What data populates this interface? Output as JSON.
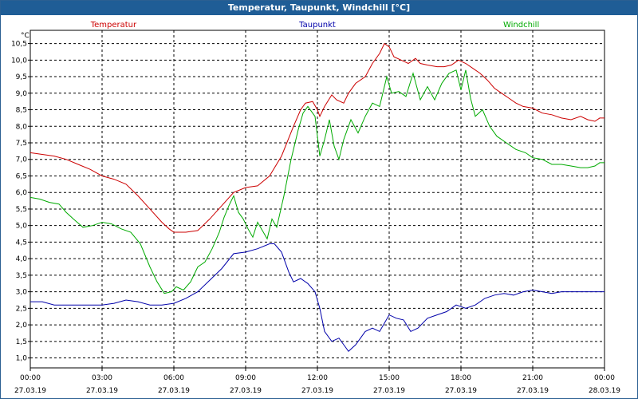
{
  "window": {
    "title": "Temperatur, Taupunkt, Windchill [°C]"
  },
  "chart_data": {
    "type": "line",
    "title": "Temperatur, Taupunkt, Windchill [°C]",
    "ylabel": "°C",
    "xlabel": "",
    "ylim": [
      0.7,
      10.9
    ],
    "xlim": [
      0,
      24
    ],
    "grid": true,
    "legend_position": "top",
    "x_ticks": [
      {
        "x": 0,
        "time": "00:00",
        "date": "27.03.19"
      },
      {
        "x": 3,
        "time": "03:00",
        "date": "27.03.19"
      },
      {
        "x": 6,
        "time": "06:00",
        "date": "27.03.19"
      },
      {
        "x": 9,
        "time": "09:00",
        "date": "27.03.19"
      },
      {
        "x": 12,
        "time": "12:00",
        "date": "27.03.19"
      },
      {
        "x": 15,
        "time": "15:00",
        "date": "27.03.19"
      },
      {
        "x": 18,
        "time": "18:00",
        "date": "27.03.19"
      },
      {
        "x": 21,
        "time": "21:00",
        "date": "27.03.19"
      },
      {
        "x": 24,
        "time": "00:00",
        "date": "28.03.19"
      }
    ],
    "y_ticks": [
      {
        "v": 1.0,
        "label": "1,0"
      },
      {
        "v": 1.5,
        "label": "1,5"
      },
      {
        "v": 2.0,
        "label": "2,0"
      },
      {
        "v": 2.5,
        "label": "2,5"
      },
      {
        "v": 3.0,
        "label": "3,0"
      },
      {
        "v": 3.5,
        "label": "3,5"
      },
      {
        "v": 4.0,
        "label": "4,0"
      },
      {
        "v": 4.5,
        "label": "4,5"
      },
      {
        "v": 5.0,
        "label": "5,0"
      },
      {
        "v": 5.5,
        "label": "5,5"
      },
      {
        "v": 6.0,
        "label": "6,0"
      },
      {
        "v": 6.5,
        "label": "6,5"
      },
      {
        "v": 7.0,
        "label": "7,0"
      },
      {
        "v": 7.5,
        "label": "7,5"
      },
      {
        "v": 8.0,
        "label": "8,0"
      },
      {
        "v": 8.5,
        "label": "8,5"
      },
      {
        "v": 9.0,
        "label": "9,0"
      },
      {
        "v": 9.5,
        "label": "9,5"
      },
      {
        "v": 10.0,
        "label": "10,0"
      },
      {
        "v": 10.5,
        "label": "10,5"
      }
    ],
    "series": [
      {
        "name": "Temperatur",
        "color": "#cc0000",
        "points": [
          [
            0,
            7.2
          ],
          [
            0.5,
            7.15
          ],
          [
            1,
            7.1
          ],
          [
            1.5,
            7.0
          ],
          [
            2,
            6.85
          ],
          [
            2.5,
            6.7
          ],
          [
            3,
            6.5
          ],
          [
            3.5,
            6.4
          ],
          [
            4,
            6.25
          ],
          [
            4.5,
            5.9
          ],
          [
            5,
            5.5
          ],
          [
            5.5,
            5.1
          ],
          [
            5.8,
            4.9
          ],
          [
            6,
            4.8
          ],
          [
            6.5,
            4.8
          ],
          [
            7,
            4.85
          ],
          [
            7.5,
            5.2
          ],
          [
            8,
            5.6
          ],
          [
            8.5,
            6.0
          ],
          [
            9,
            6.15
          ],
          [
            9.5,
            6.2
          ],
          [
            10,
            6.5
          ],
          [
            10.5,
            7.1
          ],
          [
            11,
            8.0
          ],
          [
            11.3,
            8.5
          ],
          [
            11.5,
            8.7
          ],
          [
            11.8,
            8.75
          ],
          [
            12,
            8.5
          ],
          [
            12.1,
            8.3
          ],
          [
            12.3,
            8.6
          ],
          [
            12.6,
            8.95
          ],
          [
            12.8,
            8.8
          ],
          [
            13.1,
            8.7
          ],
          [
            13.3,
            9.0
          ],
          [
            13.6,
            9.3
          ],
          [
            14,
            9.5
          ],
          [
            14.3,
            9.9
          ],
          [
            14.6,
            10.2
          ],
          [
            14.8,
            10.5
          ],
          [
            15,
            10.4
          ],
          [
            15.2,
            10.1
          ],
          [
            15.5,
            10.0
          ],
          [
            15.8,
            9.9
          ],
          [
            16.1,
            10.05
          ],
          [
            16.3,
            9.9
          ],
          [
            16.6,
            9.85
          ],
          [
            17,
            9.8
          ],
          [
            17.3,
            9.8
          ],
          [
            17.6,
            9.85
          ],
          [
            17.9,
            10.0
          ],
          [
            18.2,
            9.9
          ],
          [
            18.5,
            9.75
          ],
          [
            18.8,
            9.6
          ],
          [
            19.1,
            9.4
          ],
          [
            19.4,
            9.15
          ],
          [
            19.7,
            9.0
          ],
          [
            20,
            8.85
          ],
          [
            20.3,
            8.7
          ],
          [
            20.6,
            8.6
          ],
          [
            21,
            8.55
          ],
          [
            21.4,
            8.4
          ],
          [
            21.8,
            8.35
          ],
          [
            22.2,
            8.25
          ],
          [
            22.6,
            8.2
          ],
          [
            23,
            8.3
          ],
          [
            23.3,
            8.2
          ],
          [
            23.6,
            8.15
          ],
          [
            23.8,
            8.25
          ],
          [
            24,
            8.25
          ]
        ]
      },
      {
        "name": "Taupunkt",
        "color": "#0000aa",
        "points": [
          [
            0,
            2.7
          ],
          [
            0.5,
            2.7
          ],
          [
            1,
            2.6
          ],
          [
            1.5,
            2.6
          ],
          [
            2,
            2.6
          ],
          [
            2.5,
            2.6
          ],
          [
            3,
            2.6
          ],
          [
            3.5,
            2.65
          ],
          [
            4,
            2.75
          ],
          [
            4.5,
            2.7
          ],
          [
            5,
            2.6
          ],
          [
            5.5,
            2.6
          ],
          [
            6,
            2.65
          ],
          [
            6.5,
            2.8
          ],
          [
            7,
            3.0
          ],
          [
            7.5,
            3.35
          ],
          [
            8,
            3.7
          ],
          [
            8.5,
            4.15
          ],
          [
            9,
            4.2
          ],
          [
            9.5,
            4.3
          ],
          [
            10,
            4.45
          ],
          [
            10.2,
            4.45
          ],
          [
            10.5,
            4.2
          ],
          [
            10.8,
            3.6
          ],
          [
            11,
            3.3
          ],
          [
            11.3,
            3.4
          ],
          [
            11.6,
            3.25
          ],
          [
            11.9,
            3.0
          ],
          [
            12.1,
            2.5
          ],
          [
            12.3,
            1.8
          ],
          [
            12.6,
            1.5
          ],
          [
            12.9,
            1.6
          ],
          [
            13.1,
            1.4
          ],
          [
            13.3,
            1.2
          ],
          [
            13.6,
            1.4
          ],
          [
            14,
            1.8
          ],
          [
            14.3,
            1.9
          ],
          [
            14.6,
            1.8
          ],
          [
            15,
            2.3
          ],
          [
            15.3,
            2.2
          ],
          [
            15.6,
            2.15
          ],
          [
            15.9,
            1.8
          ],
          [
            16.2,
            1.9
          ],
          [
            16.6,
            2.2
          ],
          [
            17,
            2.3
          ],
          [
            17.4,
            2.4
          ],
          [
            17.8,
            2.6
          ],
          [
            18.2,
            2.5
          ],
          [
            18.6,
            2.6
          ],
          [
            19,
            2.8
          ],
          [
            19.4,
            2.9
          ],
          [
            19.8,
            2.95
          ],
          [
            20.2,
            2.9
          ],
          [
            20.6,
            3.0
          ],
          [
            21,
            3.05
          ],
          [
            21.4,
            3.0
          ],
          [
            21.8,
            2.95
          ],
          [
            22.2,
            3.0
          ],
          [
            22.6,
            3.0
          ],
          [
            23,
            3.0
          ],
          [
            23.5,
            3.0
          ],
          [
            24,
            3.0
          ]
        ]
      },
      {
        "name": "Windchill",
        "color": "#00aa00",
        "points": [
          [
            0,
            5.85
          ],
          [
            0.4,
            5.8
          ],
          [
            0.8,
            5.7
          ],
          [
            1.2,
            5.65
          ],
          [
            1.5,
            5.4
          ],
          [
            1.8,
            5.2
          ],
          [
            2.2,
            4.95
          ],
          [
            2.6,
            5.0
          ],
          [
            3,
            5.1
          ],
          [
            3.4,
            5.05
          ],
          [
            3.8,
            4.9
          ],
          [
            4.2,
            4.8
          ],
          [
            4.6,
            4.45
          ],
          [
            5,
            3.75
          ],
          [
            5.3,
            3.3
          ],
          [
            5.6,
            2.95
          ],
          [
            5.9,
            3.0
          ],
          [
            6.1,
            3.15
          ],
          [
            6.4,
            3.05
          ],
          [
            6.7,
            3.3
          ],
          [
            7,
            3.75
          ],
          [
            7.3,
            3.9
          ],
          [
            7.6,
            4.3
          ],
          [
            7.9,
            4.8
          ],
          [
            8.1,
            5.25
          ],
          [
            8.3,
            5.6
          ],
          [
            8.5,
            5.9
          ],
          [
            8.7,
            5.4
          ],
          [
            8.9,
            5.2
          ],
          [
            9.1,
            4.9
          ],
          [
            9.3,
            4.65
          ],
          [
            9.5,
            5.1
          ],
          [
            9.7,
            4.85
          ],
          [
            9.9,
            4.6
          ],
          [
            10.1,
            5.2
          ],
          [
            10.3,
            4.95
          ],
          [
            10.6,
            5.9
          ],
          [
            10.9,
            7.0
          ],
          [
            11.2,
            7.9
          ],
          [
            11.4,
            8.4
          ],
          [
            11.6,
            8.6
          ],
          [
            11.9,
            8.3
          ],
          [
            12.1,
            7.1
          ],
          [
            12.3,
            7.6
          ],
          [
            12.5,
            8.2
          ],
          [
            12.7,
            7.4
          ],
          [
            12.9,
            7.0
          ],
          [
            13.1,
            7.6
          ],
          [
            13.4,
            8.2
          ],
          [
            13.7,
            7.8
          ],
          [
            14,
            8.3
          ],
          [
            14.3,
            8.7
          ],
          [
            14.6,
            8.6
          ],
          [
            14.9,
            9.5
          ],
          [
            15.1,
            9.0
          ],
          [
            15.4,
            9.05
          ],
          [
            15.7,
            8.9
          ],
          [
            16,
            9.6
          ],
          [
            16.3,
            8.8
          ],
          [
            16.6,
            9.2
          ],
          [
            16.9,
            8.8
          ],
          [
            17.2,
            9.3
          ],
          [
            17.5,
            9.6
          ],
          [
            17.8,
            9.7
          ],
          [
            18,
            9.1
          ],
          [
            18.2,
            9.7
          ],
          [
            18.4,
            8.85
          ],
          [
            18.6,
            8.3
          ],
          [
            18.9,
            8.5
          ],
          [
            19.2,
            8.0
          ],
          [
            19.5,
            7.7
          ],
          [
            19.9,
            7.5
          ],
          [
            20.3,
            7.3
          ],
          [
            20.7,
            7.2
          ],
          [
            21,
            7.05
          ],
          [
            21.4,
            7.0
          ],
          [
            21.8,
            6.85
          ],
          [
            22.2,
            6.85
          ],
          [
            22.6,
            6.8
          ],
          [
            23,
            6.75
          ],
          [
            23.3,
            6.75
          ],
          [
            23.6,
            6.8
          ],
          [
            23.8,
            6.9
          ],
          [
            24,
            6.9
          ]
        ]
      }
    ]
  }
}
